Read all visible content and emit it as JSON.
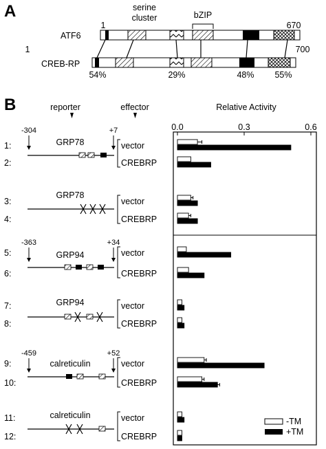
{
  "panel_a": {
    "letter": "A",
    "labels": {
      "serine_cluster_line1": "serine",
      "serine_cluster_line2": "cluster",
      "bzip": "bZIP"
    },
    "proteins": [
      {
        "name": "ATF6",
        "start": "1",
        "end": "670"
      },
      {
        "name": "CREB-RP",
        "start": "1",
        "end": "700"
      }
    ],
    "identity": [
      "54%",
      "29%",
      "48%",
      "55%"
    ]
  },
  "panel_b": {
    "letter": "B",
    "headers": {
      "reporter": "reporter",
      "effector": "effector",
      "activity": "Relative Activity"
    },
    "axis_ticks": [
      "0.0",
      "0.3",
      "0.6"
    ],
    "reporters": [
      {
        "name": "GRP78",
        "left": "-304",
        "right": "+7"
      },
      {
        "name": "GRP78",
        "left": "",
        "right": ""
      },
      {
        "name": "GRP94",
        "left": "-363",
        "right": "+34"
      },
      {
        "name": "GRP94",
        "left": "",
        "right": ""
      },
      {
        "name": "calreticulin",
        "left": "-459",
        "right": "+52"
      },
      {
        "name": "calreticulin",
        "left": "",
        "right": ""
      }
    ],
    "rows": [
      {
        "num": "1:",
        "effector": "vector"
      },
      {
        "num": "2:",
        "effector": "CREBRP"
      },
      {
        "num": "3:",
        "effector": "vector"
      },
      {
        "num": "4:",
        "effector": "CREBRP"
      },
      {
        "num": "5:",
        "effector": "vector"
      },
      {
        "num": "6:",
        "effector": "CREBRP"
      },
      {
        "num": "7:",
        "effector": "vector"
      },
      {
        "num": "8:",
        "effector": "CREBRP"
      },
      {
        "num": "9:",
        "effector": "vector"
      },
      {
        "num": "10:",
        "effector": "CREBRP"
      },
      {
        "num": "11:",
        "effector": "vector"
      },
      {
        "num": "12:",
        "effector": "CREBRP"
      }
    ],
    "legend": [
      "-TM",
      "+TM"
    ]
  },
  "chart_data": {
    "type": "bar",
    "orientation": "horizontal",
    "xlabel": "Relative Activity",
    "xlim": [
      0,
      0.6
    ],
    "ticks": [
      0.0,
      0.3,
      0.6
    ],
    "categories": [
      "1",
      "2",
      "3",
      "4",
      "5",
      "6",
      "7",
      "8",
      "9",
      "10",
      "11",
      "12"
    ],
    "series": [
      {
        "name": "-TM",
        "fill": "#ffffff",
        "values": [
          0.09,
          0.06,
          0.06,
          0.05,
          0.04,
          0.05,
          0.02,
          0.02,
          0.12,
          0.11,
          0.02,
          0.02
        ],
        "errors": [
          0.02,
          0,
          0.01,
          0.01,
          0,
          0,
          0,
          0,
          0.01,
          0.01,
          0,
          0
        ]
      },
      {
        "name": "+TM",
        "fill": "#000000",
        "values": [
          0.51,
          0.15,
          0.09,
          0.09,
          0.24,
          0.12,
          0.03,
          0.03,
          0.39,
          0.18,
          0.03,
          0.02
        ],
        "errors": [
          0,
          0,
          0,
          0,
          0,
          0,
          0,
          0,
          0,
          0.01,
          0,
          0
        ]
      }
    ]
  }
}
